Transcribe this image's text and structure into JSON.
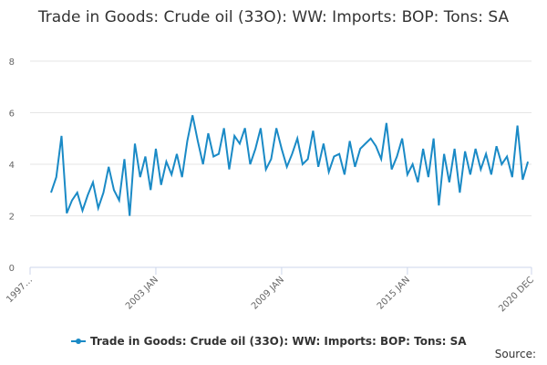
{
  "chart_data": {
    "type": "line",
    "title": "Trade in Goods: Crude oil (33O): WW: Imports: BOP: Tons: SA",
    "source": "Source:",
    "x": [
      1998,
      1998.25,
      1998.5,
      1998.75,
      1999,
      1999.25,
      1999.5,
      1999.75,
      2000,
      2000.25,
      2000.5,
      2000.75,
      2001,
      2001.25,
      2001.5,
      2001.75,
      2002,
      2002.25,
      2002.5,
      2002.75,
      2003,
      2003.25,
      2003.5,
      2003.75,
      2004,
      2004.25,
      2004.5,
      2004.75,
      2005,
      2005.25,
      2005.5,
      2005.75,
      2006,
      2006.25,
      2006.5,
      2006.75,
      2007,
      2007.25,
      2007.5,
      2007.75,
      2008,
      2008.25,
      2008.5,
      2008.75,
      2009,
      2009.25,
      2009.5,
      2009.75,
      2010,
      2010.25,
      2010.5,
      2010.75,
      2011,
      2011.25,
      2011.5,
      2011.75,
      2012,
      2012.25,
      2012.5,
      2012.75,
      2013,
      2013.25,
      2013.5,
      2013.75,
      2014,
      2014.25,
      2014.5,
      2014.75,
      2015,
      2015.25,
      2015.5,
      2015.75,
      2016,
      2016.25,
      2016.5,
      2016.75,
      2017,
      2017.25,
      2017.5,
      2017.75,
      2018,
      2018.25,
      2018.5,
      2018.75,
      2019,
      2019.25,
      2019.5,
      2019.75,
      2020,
      2020.25,
      2020.5,
      2020.75
    ],
    "series": [
      {
        "name": "Trade in Goods: Crude oil (33O): WW: Imports: BOP: Tons: SA",
        "color": "#1a8ac6",
        "values": [
          2.9,
          3.5,
          5.1,
          2.1,
          2.6,
          2.9,
          2.2,
          2.8,
          3.3,
          2.3,
          2.9,
          3.9,
          3.0,
          2.6,
          4.2,
          2.0,
          4.8,
          3.5,
          4.3,
          3.0,
          4.6,
          3.2,
          4.1,
          3.6,
          4.4,
          3.5,
          4.9,
          5.9,
          4.9,
          4.0,
          5.2,
          4.3,
          4.4,
          5.4,
          3.8,
          5.1,
          4.8,
          5.4,
          4.0,
          4.6,
          5.4,
          3.8,
          4.2,
          5.4,
          4.6,
          3.9,
          4.4,
          5.0,
          4.0,
          4.2,
          5.3,
          3.9,
          4.8,
          3.7,
          4.3,
          4.4,
          3.6,
          4.9,
          3.9,
          4.6,
          4.8,
          5.0,
          4.7,
          4.2,
          5.6,
          3.8,
          4.3,
          5.0,
          3.6,
          4.0,
          3.3,
          4.6,
          3.5,
          5.0,
          2.4,
          4.4,
          3.3,
          4.6,
          2.9,
          4.5,
          3.6,
          4.6,
          3.8,
          4.4,
          3.6,
          4.7,
          4.0,
          4.3,
          3.5,
          5.5,
          3.4,
          4.1
        ]
      }
    ],
    "xlim": [
      1997,
      2020.92
    ],
    "xticks": [
      {
        "value": 1997,
        "label": "1997…"
      },
      {
        "value": 2003,
        "label": "2003 JAN"
      },
      {
        "value": 2009,
        "label": "2009 JAN"
      },
      {
        "value": 2015,
        "label": "2015 JAN"
      },
      {
        "value": 2020.92,
        "label": "2020 DEC"
      }
    ],
    "ylim": [
      0,
      8
    ],
    "yticks": [
      0,
      2,
      4,
      6,
      8
    ],
    "grid": true,
    "legend": "bottom"
  }
}
